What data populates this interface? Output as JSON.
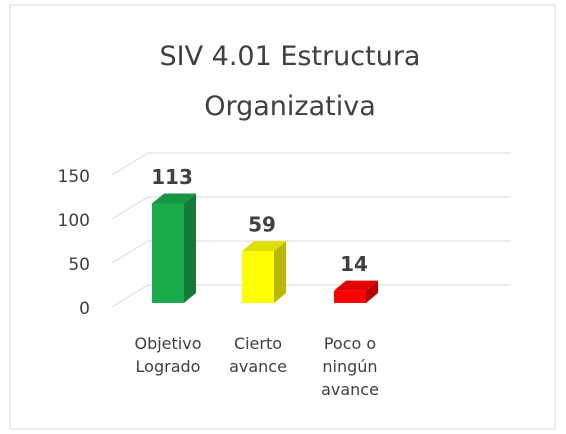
{
  "chart_data": {
    "type": "bar3d",
    "title": "SIV 4.01 Estructura Organizativa",
    "categories": [
      "Objetivo Logrado",
      "Cierto avance",
      "Poco o ningún avance"
    ],
    "values": [
      113,
      59,
      14
    ],
    "colors": [
      "#1aab4b",
      "#ffff00",
      "#ff0000"
    ],
    "ylim": [
      0,
      150
    ],
    "yticks": [
      0,
      50,
      100,
      150
    ],
    "grid": true
  }
}
